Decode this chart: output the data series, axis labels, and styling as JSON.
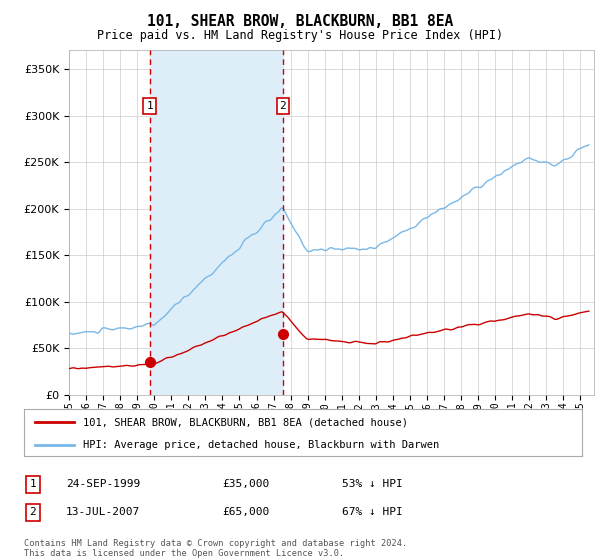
{
  "title": "101, SHEAR BROW, BLACKBURN, BB1 8EA",
  "subtitle": "Price paid vs. HM Land Registry's House Price Index (HPI)",
  "ylim": [
    0,
    370000
  ],
  "yticks": [
    0,
    50000,
    100000,
    150000,
    200000,
    250000,
    300000,
    350000
  ],
  "hpi_color": "#7ab8e8",
  "hpi_fill_color": "#ddeef8",
  "price_color": "#cc0000",
  "transaction1_year": 1999.73,
  "transaction1_price": 35000,
  "transaction2_year": 2007.54,
  "transaction2_price": 65000,
  "transaction1_date": "24-SEP-1999",
  "transaction1_hpi_pct": "53% ↓ HPI",
  "transaction2_date": "13-JUL-2007",
  "transaction2_hpi_pct": "67% ↓ HPI",
  "legend_line1": "101, SHEAR BROW, BLACKBURN, BB1 8EA (detached house)",
  "legend_line2": "HPI: Average price, detached house, Blackburn with Darwen",
  "footer": "Contains HM Land Registry data © Crown copyright and database right 2024.\nThis data is licensed under the Open Government Licence v3.0.",
  "background_color": "#ffffff",
  "grid_color": "#cccccc",
  "shade_color": "#ddeef8"
}
